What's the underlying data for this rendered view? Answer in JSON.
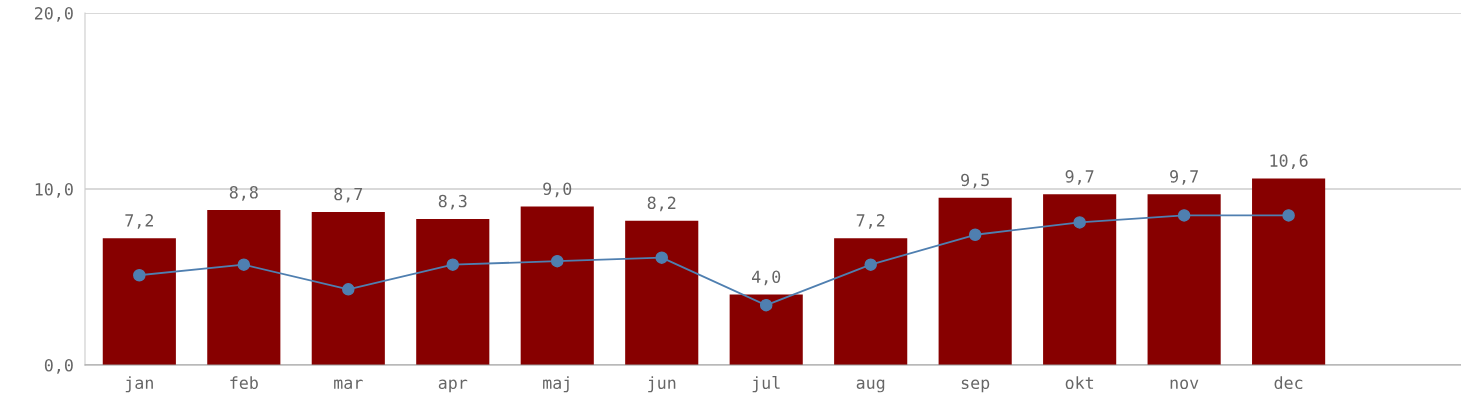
{
  "chart_data": {
    "type": "bar",
    "categories": [
      "jan",
      "feb",
      "mar",
      "apr",
      "maj",
      "jun",
      "jul",
      "aug",
      "sep",
      "okt",
      "nov",
      "dec"
    ],
    "series": [
      {
        "color": "#870000",
        "values": [
          7.2,
          8.8,
          8.7,
          8.3,
          9.0,
          8.2,
          4.0,
          7.2,
          9.5,
          9.7,
          9.7,
          10.6
        ],
        "value_labels": [
          "7,2",
          "8,8",
          "8,7",
          "8,3",
          "9,0",
          "8,2",
          "4,0",
          "7,2",
          "9,5",
          "9,7",
          "9,7",
          "10,6"
        ]
      },
      {
        "type": "line",
        "color": "#4f7fb0",
        "marker": "circle",
        "values": [
          5.1,
          5.7,
          4.3,
          5.7,
          5.9,
          6.1,
          3.4,
          5.7,
          7.4,
          8.1,
          8.5,
          8.5
        ]
      }
    ],
    "ylim": [
      0,
      20
    ],
    "yticks": [
      {
        "value": 0,
        "label": "0,0"
      },
      {
        "value": 10,
        "label": "10,0"
      },
      {
        "value": 20,
        "label": "20,0"
      }
    ],
    "grid": "y",
    "legend": false
  }
}
